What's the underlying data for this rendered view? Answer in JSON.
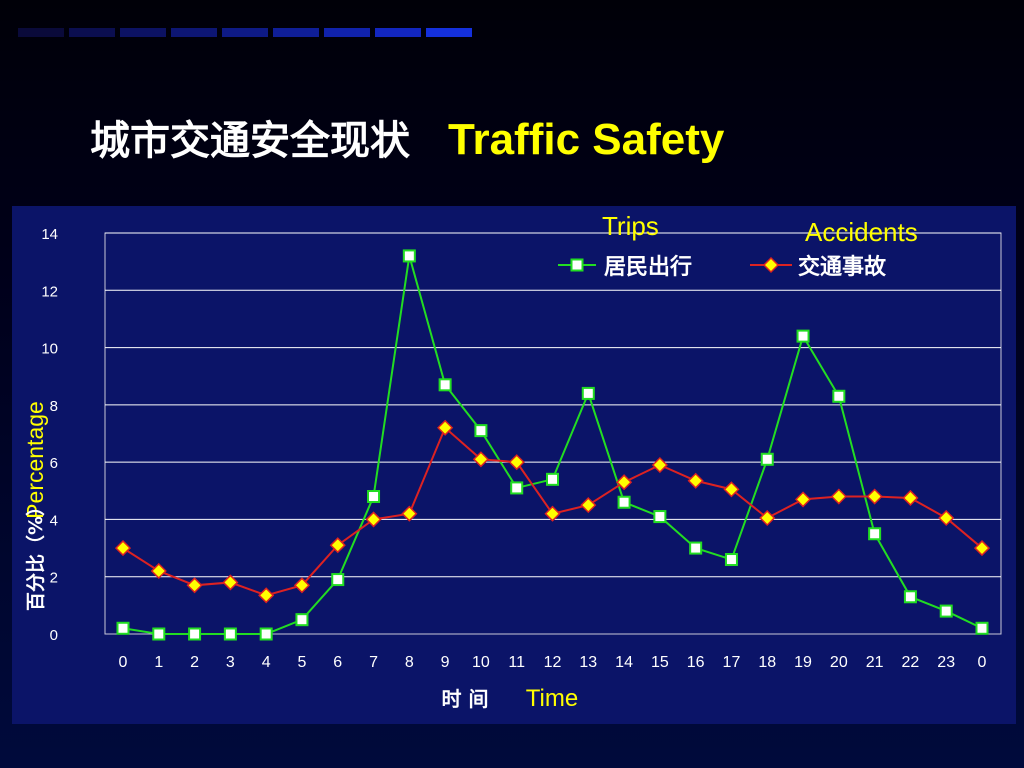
{
  "slide": {
    "title_cn": "城市交通安全现状",
    "title_en": "Traffic Safety",
    "colors": {
      "strip": [
        "#0a0a3a",
        "#0b0e50",
        "#0c1263",
        "#0d1674",
        "#0e1a86",
        "#0f1e98",
        "#1022ac",
        "#1226c0",
        "#1430dd"
      ]
    }
  },
  "chart_data": {
    "type": "line",
    "categories": [
      "0",
      "1",
      "2",
      "3",
      "4",
      "5",
      "6",
      "7",
      "8",
      "9",
      "10",
      "11",
      "12",
      "13",
      "14",
      "15",
      "16",
      "17",
      "18",
      "19",
      "20",
      "21",
      "22",
      "23",
      "0"
    ],
    "series": [
      {
        "name": "居民出行",
        "name_en": "Trips",
        "color": "#22dd22",
        "marker": "square",
        "values": [
          0.2,
          0.0,
          0.0,
          0.0,
          0.0,
          0.5,
          1.9,
          4.8,
          13.2,
          8.7,
          7.1,
          5.1,
          5.4,
          8.4,
          4.6,
          4.1,
          3.0,
          2.6,
          6.1,
          10.4,
          8.3,
          3.5,
          1.3,
          0.8,
          0.2
        ]
      },
      {
        "name": "交通事故",
        "name_en": "Accidents",
        "color": "#dd2222",
        "marker": "diamond",
        "values": [
          3.0,
          2.2,
          1.7,
          1.8,
          1.35,
          1.7,
          3.1,
          4.0,
          4.2,
          7.2,
          6.1,
          6.0,
          4.2,
          4.5,
          5.3,
          5.9,
          5.35,
          5.05,
          4.05,
          4.7,
          4.8,
          4.8,
          4.75,
          4.05,
          3.0
        ]
      }
    ],
    "ylim": [
      0,
      14
    ],
    "yticks": [
      "0",
      "2",
      "4",
      "6",
      "8",
      "10",
      "12",
      "14"
    ],
    "xlabel": "时 间",
    "xlabel_en": "Time",
    "ylabel": "百分比（%）",
    "ylabel_en": "Percentage",
    "legend": "top-right",
    "grid": true,
    "colors": {
      "plot_bg": "#0b1468",
      "grid": "#ffffff",
      "annotation": "#ffff00",
      "label": "#ffffff"
    }
  }
}
